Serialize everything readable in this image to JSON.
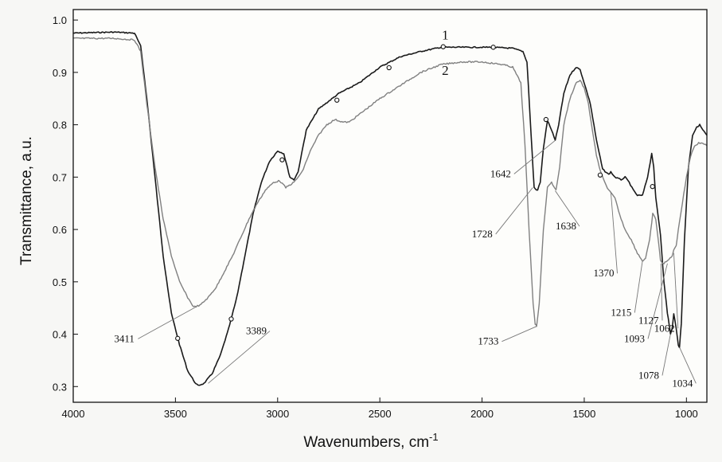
{
  "chart_data": {
    "type": "line",
    "title": "",
    "xlabel": "Wavenumbers, cm",
    "xlabel_sup": "-1",
    "ylabel": "Transmittance, a.u.",
    "xlim": [
      4000,
      900
    ],
    "x_reversed": true,
    "ylim": [
      0.27,
      1.02
    ],
    "x_ticks": [
      4000,
      3500,
      3000,
      2500,
      2000,
      1500,
      1000
    ],
    "y_ticks": [
      0.3,
      0.4,
      0.5,
      0.6,
      0.7,
      0.8,
      0.9,
      1.0
    ],
    "y_tick_labels": [
      "0.3",
      "0.4",
      "0.5",
      "0.6",
      "0.7",
      "0.8",
      "0.9",
      "1.0"
    ],
    "grid": false,
    "series": [
      {
        "name": "1",
        "color": "#1a1a1a",
        "x": [
          4000,
          3900,
          3800,
          3700,
          3670,
          3640,
          3600,
          3560,
          3520,
          3480,
          3440,
          3400,
          3389,
          3360,
          3320,
          3280,
          3240,
          3200,
          3160,
          3120,
          3080,
          3040,
          3000,
          2970,
          2940,
          2920,
          2900,
          2860,
          2800,
          2700,
          2600,
          2500,
          2450,
          2400,
          2300,
          2200,
          2100,
          2000,
          1950,
          1850,
          1800,
          1780,
          1760,
          1745,
          1733,
          1728,
          1715,
          1700,
          1680,
          1660,
          1642,
          1625,
          1600,
          1570,
          1540,
          1520,
          1500,
          1470,
          1440,
          1410,
          1380,
          1370,
          1350,
          1320,
          1300,
          1280,
          1260,
          1240,
          1215,
          1190,
          1170,
          1160,
          1150,
          1130,
          1127,
          1110,
          1093,
          1085,
          1078,
          1070,
          1062,
          1050,
          1040,
          1034,
          1025,
          1010,
          990,
          970,
          950,
          935,
          920,
          900
        ],
        "y": [
          0.975,
          0.976,
          0.977,
          0.975,
          0.95,
          0.85,
          0.7,
          0.55,
          0.44,
          0.38,
          0.33,
          0.305,
          0.302,
          0.306,
          0.325,
          0.36,
          0.41,
          0.47,
          0.55,
          0.63,
          0.69,
          0.73,
          0.75,
          0.745,
          0.7,
          0.695,
          0.71,
          0.79,
          0.83,
          0.86,
          0.88,
          0.91,
          0.92,
          0.93,
          0.94,
          0.948,
          0.948,
          0.948,
          0.948,
          0.946,
          0.94,
          0.92,
          0.78,
          0.68,
          0.675,
          0.676,
          0.69,
          0.755,
          0.808,
          0.79,
          0.77,
          0.8,
          0.86,
          0.895,
          0.91,
          0.905,
          0.88,
          0.84,
          0.77,
          0.715,
          0.705,
          0.71,
          0.7,
          0.695,
          0.7,
          0.69,
          0.675,
          0.665,
          0.665,
          0.7,
          0.745,
          0.72,
          0.66,
          0.6,
          0.59,
          0.5,
          0.44,
          0.42,
          0.4,
          0.41,
          0.44,
          0.41,
          0.38,
          0.375,
          0.42,
          0.58,
          0.72,
          0.78,
          0.795,
          0.8,
          0.79,
          0.78
        ]
      },
      {
        "name": "2",
        "color": "#808080",
        "x": [
          4000,
          3900,
          3800,
          3700,
          3670,
          3640,
          3600,
          3560,
          3520,
          3480,
          3440,
          3411,
          3380,
          3340,
          3300,
          3260,
          3220,
          3180,
          3140,
          3100,
          3060,
          3020,
          2990,
          2960,
          2920,
          2900,
          2880,
          2840,
          2800,
          2760,
          2720,
          2680,
          2650,
          2600,
          2500,
          2400,
          2300,
          2200,
          2100,
          2000,
          1900,
          1850,
          1810,
          1790,
          1770,
          1750,
          1740,
          1733,
          1720,
          1700,
          1680,
          1660,
          1638,
          1620,
          1600,
          1570,
          1540,
          1520,
          1500,
          1480,
          1460,
          1440,
          1420,
          1400,
          1380,
          1370,
          1350,
          1320,
          1300,
          1270,
          1240,
          1215,
          1200,
          1180,
          1165,
          1150,
          1135,
          1127,
          1110,
          1093,
          1080,
          1070,
          1062,
          1050,
          1040,
          1020,
          1000,
          980,
          960,
          940,
          920,
          900
        ],
        "y": [
          0.965,
          0.965,
          0.965,
          0.962,
          0.94,
          0.84,
          0.72,
          0.62,
          0.55,
          0.5,
          0.47,
          0.452,
          0.455,
          0.47,
          0.49,
          0.52,
          0.55,
          0.585,
          0.62,
          0.65,
          0.675,
          0.69,
          0.693,
          0.68,
          0.69,
          0.7,
          0.71,
          0.75,
          0.78,
          0.8,
          0.81,
          0.805,
          0.805,
          0.82,
          0.85,
          0.875,
          0.9,
          0.915,
          0.92,
          0.92,
          0.915,
          0.91,
          0.88,
          0.76,
          0.6,
          0.46,
          0.42,
          0.415,
          0.46,
          0.6,
          0.68,
          0.69,
          0.675,
          0.72,
          0.8,
          0.85,
          0.88,
          0.885,
          0.87,
          0.84,
          0.79,
          0.74,
          0.71,
          0.69,
          0.675,
          0.67,
          0.66,
          0.62,
          0.6,
          0.58,
          0.555,
          0.54,
          0.545,
          0.58,
          0.63,
          0.62,
          0.57,
          0.54,
          0.535,
          0.54,
          0.545,
          0.55,
          0.56,
          0.57,
          0.6,
          0.65,
          0.7,
          0.74,
          0.76,
          0.765,
          0.765,
          0.76
        ]
      }
    ],
    "series_labels": [
      {
        "text": "1",
        "x": 2180,
        "y": 0.963
      },
      {
        "text": "2",
        "x": 2180,
        "y": 0.895
      }
    ],
    "markers": [
      {
        "series": 0,
        "x": 3489,
        "y": 0.392
      },
      {
        "series": 0,
        "x": 3227,
        "y": 0.429
      },
      {
        "series": 0,
        "x": 2978,
        "y": 0.733
      },
      {
        "series": 0,
        "x": 2710,
        "y": 0.847
      },
      {
        "series": 0,
        "x": 2455,
        "y": 0.909
      },
      {
        "series": 0,
        "x": 2190,
        "y": 0.949
      },
      {
        "series": 0,
        "x": 1945,
        "y": 0.948
      },
      {
        "series": 0,
        "x": 1687,
        "y": 0.81
      },
      {
        "series": 0,
        "x": 1422,
        "y": 0.704
      },
      {
        "series": 0,
        "x": 1166,
        "y": 0.682
      }
    ],
    "annotations": [
      {
        "text": "3411",
        "label_x": 3800,
        "label_y": 0.385,
        "point_x": 3400,
        "point_y": 0.452
      },
      {
        "text": "3389",
        "label_x": 3155,
        "label_y": 0.4,
        "point_x": 3340,
        "point_y": 0.306
      },
      {
        "text": "1642",
        "label_x": 1960,
        "label_y": 0.7,
        "point_x": 1642,
        "point_y": 0.77
      },
      {
        "text": "1728",
        "label_x": 2050,
        "label_y": 0.585,
        "point_x": 1752,
        "point_y": 0.68
      },
      {
        "text": "1638",
        "label_x": 1640,
        "label_y": 0.6,
        "point_x": 1642,
        "point_y": 0.674
      },
      {
        "text": "1370",
        "label_x": 1455,
        "label_y": 0.51,
        "point_x": 1370,
        "point_y": 0.672
      },
      {
        "text": "1215",
        "label_x": 1370,
        "label_y": 0.435,
        "point_x": 1215,
        "point_y": 0.54
      },
      {
        "text": "1127",
        "label_x": 1235,
        "label_y": 0.42,
        "point_x": 1125,
        "point_y": 0.535
      },
      {
        "text": "1093",
        "label_x": 1305,
        "label_y": 0.385,
        "point_x": 1093,
        "point_y": 0.535
      },
      {
        "text": "1062",
        "label_x": 1158,
        "label_y": 0.405,
        "point_x": 1062,
        "point_y": 0.555
      },
      {
        "text": "1733",
        "label_x": 2020,
        "label_y": 0.38,
        "point_x": 1733,
        "point_y": 0.415
      },
      {
        "text": "1078",
        "label_x": 1235,
        "label_y": 0.315,
        "point_x": 1078,
        "point_y": 0.4
      },
      {
        "text": "1034",
        "label_x": 1070,
        "label_y": 0.3,
        "point_x": 1034,
        "point_y": 0.375
      }
    ]
  }
}
